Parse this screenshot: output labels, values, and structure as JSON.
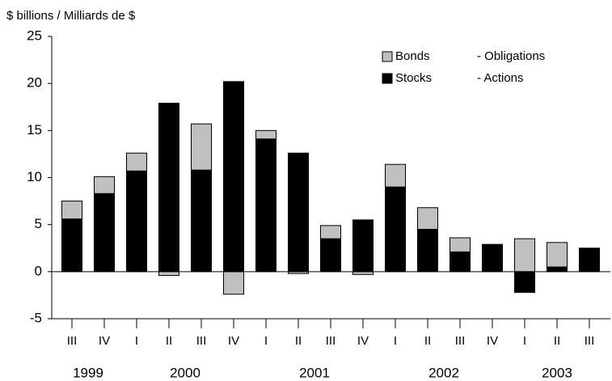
{
  "chart_data": {
    "type": "stacked_bar",
    "y_label": "$ billions /   Milliards de $",
    "categories": [
      "III",
      "IV",
      "I",
      "II",
      "III",
      "IV",
      "I",
      "II",
      "III",
      "IV",
      "I",
      "II",
      "III",
      "IV",
      "I",
      "II",
      "III"
    ],
    "year_groups": [
      {
        "label": "1999",
        "size": 2
      },
      {
        "label": "2000",
        "size": 4
      },
      {
        "label": "2001",
        "size": 4
      },
      {
        "label": "2002",
        "size": 4
      },
      {
        "label": "2003",
        "size": 3
      }
    ],
    "series": [
      {
        "name": "Stocks",
        "name_fr": "- Actions",
        "color": "#000000",
        "values": [
          5.6,
          8.3,
          10.7,
          17.9,
          10.8,
          20.2,
          14.1,
          12.6,
          3.5,
          5.5,
          9.0,
          4.5,
          2.1,
          2.9,
          -2.2,
          0.5,
          2.5
        ]
      },
      {
        "name": "Bonds",
        "name_fr": "- Obligations",
        "color": "#c0c0c0",
        "values": [
          1.9,
          1.8,
          1.9,
          -0.4,
          4.9,
          -2.4,
          0.9,
          -0.2,
          1.4,
          -0.3,
          2.4,
          2.3,
          1.5,
          0,
          3.5,
          2.6,
          0
        ]
      }
    ],
    "ylim": [
      -5,
      25
    ],
    "yticks": [
      -5,
      0,
      5,
      10,
      15,
      20,
      25
    ]
  }
}
